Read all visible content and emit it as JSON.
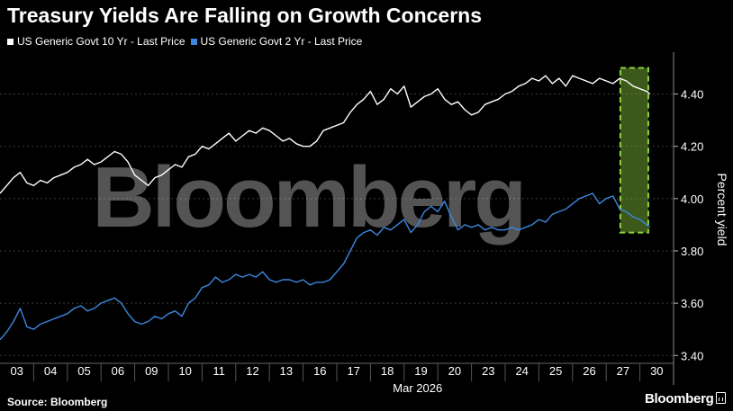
{
  "title": "Treasury Yields Are Falling on Growth Concerns",
  "source": "Source: Bloomberg",
  "brand": "Bloomberg",
  "chart_data": {
    "type": "line",
    "title": "Treasury Yields Are Falling on Growth Concerns",
    "xlabel": "Mar 2026",
    "ylabel": "Percent yield",
    "ylim": [
      3.37,
      4.56
    ],
    "yticks": [
      3.4,
      3.6,
      3.8,
      4.0,
      4.2,
      4.4
    ],
    "ytick_labels": [
      "3.40",
      "3.60",
      "3.80",
      "4.00",
      "4.20",
      "4.40"
    ],
    "categories": [
      "03",
      "04",
      "05",
      "06",
      "09",
      "10",
      "11",
      "12",
      "13",
      "16",
      "17",
      "18",
      "19",
      "20",
      "23",
      "24",
      "25",
      "26",
      "27",
      "30"
    ],
    "x_range": [
      -0.5,
      19.5
    ],
    "highlight": {
      "x_start": 17.92,
      "x_end": 18.75,
      "y_start": 3.87,
      "y_end": 4.5,
      "color": "#8fd13f"
    },
    "watermark": "Bloomberg",
    "series": [
      {
        "name": "US Generic Govt 10 Yr - Last Price",
        "color": "#ffffff",
        "x": [
          -0.5,
          -0.3,
          -0.1,
          0.1,
          0.3,
          0.5,
          0.7,
          0.9,
          1.1,
          1.3,
          1.5,
          1.7,
          1.9,
          2.1,
          2.3,
          2.5,
          2.7,
          2.9,
          3.1,
          3.3,
          3.5,
          3.7,
          3.9,
          4.1,
          4.3,
          4.5,
          4.7,
          4.9,
          5.1,
          5.3,
          5.5,
          5.7,
          5.9,
          6.1,
          6.3,
          6.5,
          6.7,
          6.9,
          7.1,
          7.3,
          7.5,
          7.7,
          7.9,
          8.1,
          8.3,
          8.5,
          8.7,
          8.9,
          9.1,
          9.3,
          9.5,
          9.7,
          9.9,
          10.1,
          10.3,
          10.5,
          10.7,
          10.9,
          11.1,
          11.3,
          11.5,
          11.7,
          11.9,
          12.1,
          12.3,
          12.5,
          12.7,
          12.9,
          13.1,
          13.3,
          13.5,
          13.7,
          13.9,
          14.1,
          14.3,
          14.5,
          14.7,
          14.9,
          15.1,
          15.3,
          15.5,
          15.7,
          15.9,
          16.1,
          16.3,
          16.5,
          16.7,
          16.9,
          17.1,
          17.3,
          17.5,
          17.7,
          17.9,
          18.1,
          18.3,
          18.5,
          18.7,
          18.8
        ],
        "values": [
          4.02,
          4.05,
          4.08,
          4.1,
          4.06,
          4.05,
          4.07,
          4.06,
          4.08,
          4.09,
          4.1,
          4.12,
          4.13,
          4.15,
          4.13,
          4.14,
          4.16,
          4.18,
          4.17,
          4.14,
          4.09,
          4.07,
          4.05,
          4.08,
          4.09,
          4.11,
          4.13,
          4.12,
          4.16,
          4.17,
          4.2,
          4.19,
          4.21,
          4.23,
          4.25,
          4.22,
          4.24,
          4.26,
          4.25,
          4.27,
          4.26,
          4.24,
          4.22,
          4.23,
          4.21,
          4.2,
          4.2,
          4.22,
          4.26,
          4.27,
          4.28,
          4.29,
          4.33,
          4.36,
          4.38,
          4.41,
          4.36,
          4.38,
          4.42,
          4.4,
          4.43,
          4.35,
          4.37,
          4.39,
          4.4,
          4.42,
          4.38,
          4.36,
          4.37,
          4.34,
          4.32,
          4.33,
          4.36,
          4.37,
          4.38,
          4.4,
          4.41,
          4.43,
          4.44,
          4.46,
          4.45,
          4.47,
          4.44,
          4.46,
          4.43,
          4.47,
          4.46,
          4.45,
          4.44,
          4.46,
          4.45,
          4.44,
          4.46,
          4.45,
          4.43,
          4.42,
          4.41,
          4.4
        ]
      },
      {
        "name": "US Generic Govt 2 Yr - Last Price",
        "color": "#3b87e0",
        "x": [
          -0.5,
          -0.3,
          -0.1,
          0.1,
          0.3,
          0.5,
          0.7,
          0.9,
          1.1,
          1.3,
          1.5,
          1.7,
          1.9,
          2.1,
          2.3,
          2.5,
          2.7,
          2.9,
          3.1,
          3.3,
          3.5,
          3.7,
          3.9,
          4.1,
          4.3,
          4.5,
          4.7,
          4.9,
          5.1,
          5.3,
          5.5,
          5.7,
          5.9,
          6.1,
          6.3,
          6.5,
          6.7,
          6.9,
          7.1,
          7.3,
          7.5,
          7.7,
          7.9,
          8.1,
          8.3,
          8.5,
          8.7,
          8.9,
          9.1,
          9.3,
          9.5,
          9.7,
          9.9,
          10.1,
          10.3,
          10.5,
          10.7,
          10.9,
          11.1,
          11.3,
          11.5,
          11.7,
          11.9,
          12.1,
          12.3,
          12.5,
          12.7,
          12.9,
          13.1,
          13.3,
          13.5,
          13.7,
          13.9,
          14.1,
          14.3,
          14.5,
          14.7,
          14.9,
          15.1,
          15.3,
          15.5,
          15.7,
          15.9,
          16.1,
          16.3,
          16.5,
          16.7,
          16.9,
          17.1,
          17.3,
          17.5,
          17.7,
          17.9,
          18.1,
          18.3,
          18.5,
          18.7,
          18.8
        ],
        "values": [
          3.46,
          3.49,
          3.53,
          3.58,
          3.51,
          3.5,
          3.52,
          3.53,
          3.54,
          3.55,
          3.56,
          3.58,
          3.59,
          3.57,
          3.58,
          3.6,
          3.61,
          3.62,
          3.6,
          3.56,
          3.53,
          3.52,
          3.53,
          3.55,
          3.54,
          3.56,
          3.57,
          3.55,
          3.6,
          3.62,
          3.66,
          3.67,
          3.7,
          3.68,
          3.69,
          3.71,
          3.7,
          3.71,
          3.7,
          3.72,
          3.69,
          3.68,
          3.69,
          3.69,
          3.68,
          3.69,
          3.67,
          3.68,
          3.68,
          3.69,
          3.72,
          3.75,
          3.8,
          3.85,
          3.87,
          3.88,
          3.86,
          3.89,
          3.88,
          3.9,
          3.92,
          3.87,
          3.9,
          3.95,
          3.97,
          3.95,
          3.99,
          3.93,
          3.88,
          3.9,
          3.89,
          3.9,
          3.88,
          3.89,
          3.88,
          3.88,
          3.89,
          3.88,
          3.89,
          3.9,
          3.92,
          3.91,
          3.94,
          3.95,
          3.96,
          3.98,
          4.0,
          4.01,
          4.02,
          3.98,
          4.0,
          4.01,
          3.96,
          3.95,
          3.93,
          3.92,
          3.9,
          3.89
        ]
      }
    ]
  }
}
